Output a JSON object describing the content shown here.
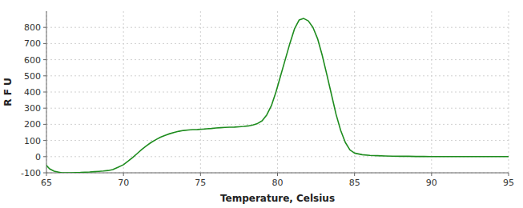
{
  "chart_data": {
    "type": "line",
    "xlabel": "Temperature, Celsius",
    "ylabel": "R F U",
    "xlim": [
      65,
      95
    ],
    "ylim": [
      -100,
      900
    ],
    "xticks": [
      65,
      70,
      75,
      80,
      85,
      90,
      95
    ],
    "yticks": [
      -100,
      0,
      100,
      200,
      300,
      400,
      500,
      600,
      700,
      800
    ],
    "grid": true,
    "color": "#1e8c1e",
    "x": [
      65.0,
      65.2,
      65.5,
      65.8,
      66.0,
      66.3,
      66.6,
      66.9,
      67.2,
      67.5,
      67.8,
      68.1,
      68.4,
      68.7,
      69.0,
      69.3,
      69.6,
      70.0,
      70.3,
      70.6,
      70.9,
      71.2,
      71.5,
      71.8,
      72.1,
      72.4,
      72.7,
      73.0,
      73.3,
      73.6,
      73.9,
      74.2,
      74.5,
      74.8,
      75.1,
      75.4,
      75.7,
      76.0,
      76.3,
      76.6,
      76.9,
      77.2,
      77.5,
      77.8,
      78.1,
      78.4,
      78.7,
      79.0,
      79.3,
      79.6,
      79.9,
      80.2,
      80.5,
      80.8,
      81.1,
      81.4,
      81.7,
      82.0,
      82.3,
      82.6,
      82.9,
      83.2,
      83.5,
      83.8,
      84.1,
      84.4,
      84.7,
      85.0,
      85.5,
      86.0,
      86.5,
      87.0,
      87.5,
      88.0,
      88.5,
      89.0,
      89.5,
      90.0,
      91.0,
      92.0,
      93.0,
      94.0,
      95.0
    ],
    "values": [
      -55,
      -75,
      -90,
      -96,
      -100,
      -100,
      -100,
      -99,
      -98,
      -96,
      -95,
      -93,
      -91,
      -89,
      -86,
      -80,
      -68,
      -50,
      -28,
      -5,
      20,
      45,
      68,
      88,
      105,
      120,
      132,
      142,
      150,
      157,
      162,
      165,
      167,
      168,
      170,
      172,
      174,
      177,
      179,
      181,
      182,
      183,
      185,
      187,
      190,
      196,
      205,
      222,
      258,
      315,
      400,
      500,
      600,
      700,
      790,
      845,
      855,
      840,
      800,
      730,
      628,
      508,
      385,
      262,
      162,
      88,
      42,
      22,
      12,
      8,
      6,
      4,
      3,
      2,
      2,
      1,
      1,
      0,
      0,
      0,
      0,
      0,
      0
    ]
  }
}
